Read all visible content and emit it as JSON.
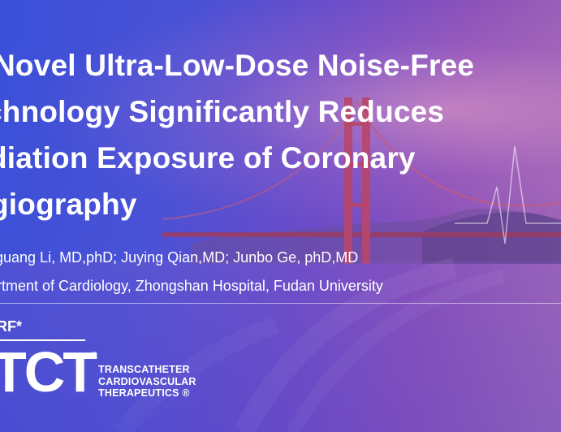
{
  "title_lines": [
    "Novel Ultra-Low-Dose Noise-Free",
    "chnology Significantly Reduces",
    "diation Exposure of Coronary",
    "giography"
  ],
  "authors": "guang Li, MD,phD; Juying Qian,MD; Junbo Ge, phD,MD",
  "affiliation": "rtment of Cardiology, Zhongshan Hospital, Fudan University",
  "logo": {
    "crf": "RF*",
    "tct": "TCT",
    "registered_mark": "®",
    "subtitle_lines": [
      "TRANSCATHETER",
      "CARDIOVASCULAR",
      "THERAPEUTICS ®"
    ]
  },
  "colors": {
    "background_left": "#3a4fd8",
    "background_right": "#a36ab5",
    "text": "#ffffff",
    "bridge": "#b8466a"
  },
  "icons": {
    "background_bridge": "golden-gate-bridge-photo",
    "heartbeat_line": "ecg-pulse-line"
  }
}
